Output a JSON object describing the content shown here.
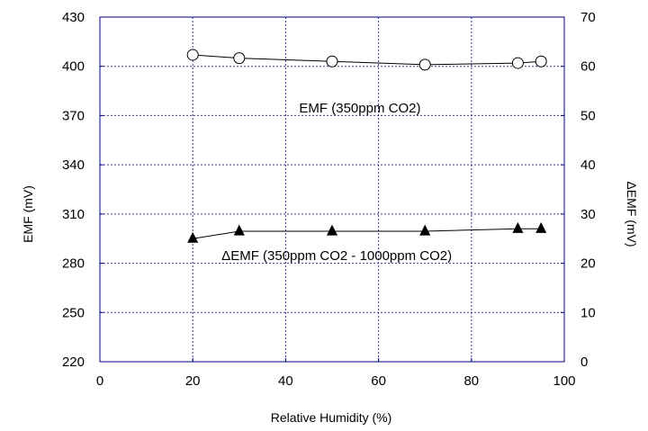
{
  "chart_data": {
    "type": "line",
    "title": "",
    "xlabel": "Relative Humidity (%)",
    "ylabel": "EMF (mV)",
    "y2label": "ΔEMF (mV)",
    "xlim": [
      0,
      100
    ],
    "ylim": [
      220,
      430
    ],
    "y2lim": [
      0,
      70
    ],
    "x_ticks": [
      0,
      20,
      40,
      60,
      80,
      100
    ],
    "y_ticks": [
      220,
      250,
      280,
      310,
      340,
      370,
      400,
      430
    ],
    "y2_ticks": [
      0,
      10,
      20,
      30,
      40,
      50,
      60,
      70
    ],
    "grid": true,
    "legend": "none",
    "series": [
      {
        "axis": "left",
        "marker": "open-circle",
        "x": [
          20,
          30,
          50,
          70,
          90,
          95
        ],
        "values": [
          407,
          405,
          403,
          401,
          402,
          403
        ]
      },
      {
        "axis": "right",
        "marker": "filled-triangle",
        "x": [
          20,
          30,
          50,
          70,
          90,
          95
        ],
        "values": [
          25,
          26.5,
          26.5,
          26.5,
          27,
          27
        ]
      }
    ],
    "annotations": [
      {
        "text": "EMF (350ppm CO2)",
        "x": 56,
        "y": 372,
        "axis": "left"
      },
      {
        "text": "ΔEMF (350ppm CO2 - 1000ppm CO2)",
        "x": 51,
        "y": 282,
        "axis": "left"
      }
    ],
    "colors": {
      "frame": "#000080",
      "grid": "#3a3aa0",
      "line": "#000000"
    }
  }
}
